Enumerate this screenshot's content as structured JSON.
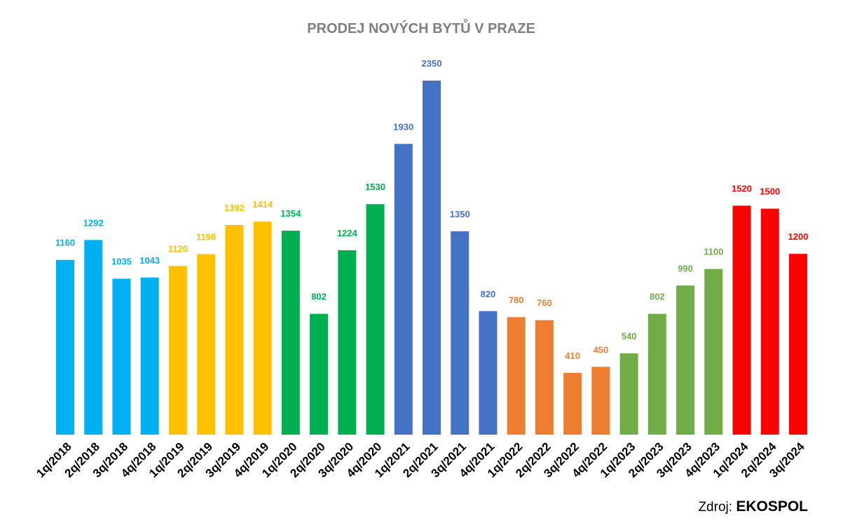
{
  "chart_data": {
    "type": "bar",
    "title": "PRODEJ NOVÝCH BYTŮ V PRAZE",
    "xlabel": "",
    "ylabel": "",
    "ylim": [
      0,
      2350
    ],
    "grid": false,
    "categories": [
      "1q/2018",
      "2q/2018",
      "3q/2018",
      "4q/2018",
      "1q/2019",
      "2q/2019",
      "3q/2019",
      "4q/2019",
      "1q/2020",
      "2q/2020",
      "3q/2020",
      "4q/2020",
      "1q/2021",
      "2q/2021",
      "3q/2021",
      "4q/2021",
      "1q/2022",
      "2q/2022",
      "3q/2022",
      "4q/2022",
      "1q/2023",
      "2q/2023",
      "3q/2023",
      "4q/2023",
      "1q/2024",
      "2q/2024",
      "3q/2024"
    ],
    "values": [
      1160,
      1292,
      1035,
      1043,
      1120,
      1198,
      1392,
      1414,
      1354,
      802,
      1224,
      1530,
      1930,
      2350,
      1350,
      820,
      780,
      760,
      410,
      450,
      540,
      802,
      990,
      1100,
      1520,
      1500,
      1200
    ],
    "year_colors": {
      "2018": "#00B0F0",
      "2019": "#FFC000",
      "2020": "#00B050",
      "2021": "#4472C4",
      "2022": "#ED7D31",
      "2023": "#70AD47",
      "2024": "#FF0000"
    }
  },
  "source": {
    "label": "Zdroj:",
    "name": "EKOSPOL"
  }
}
